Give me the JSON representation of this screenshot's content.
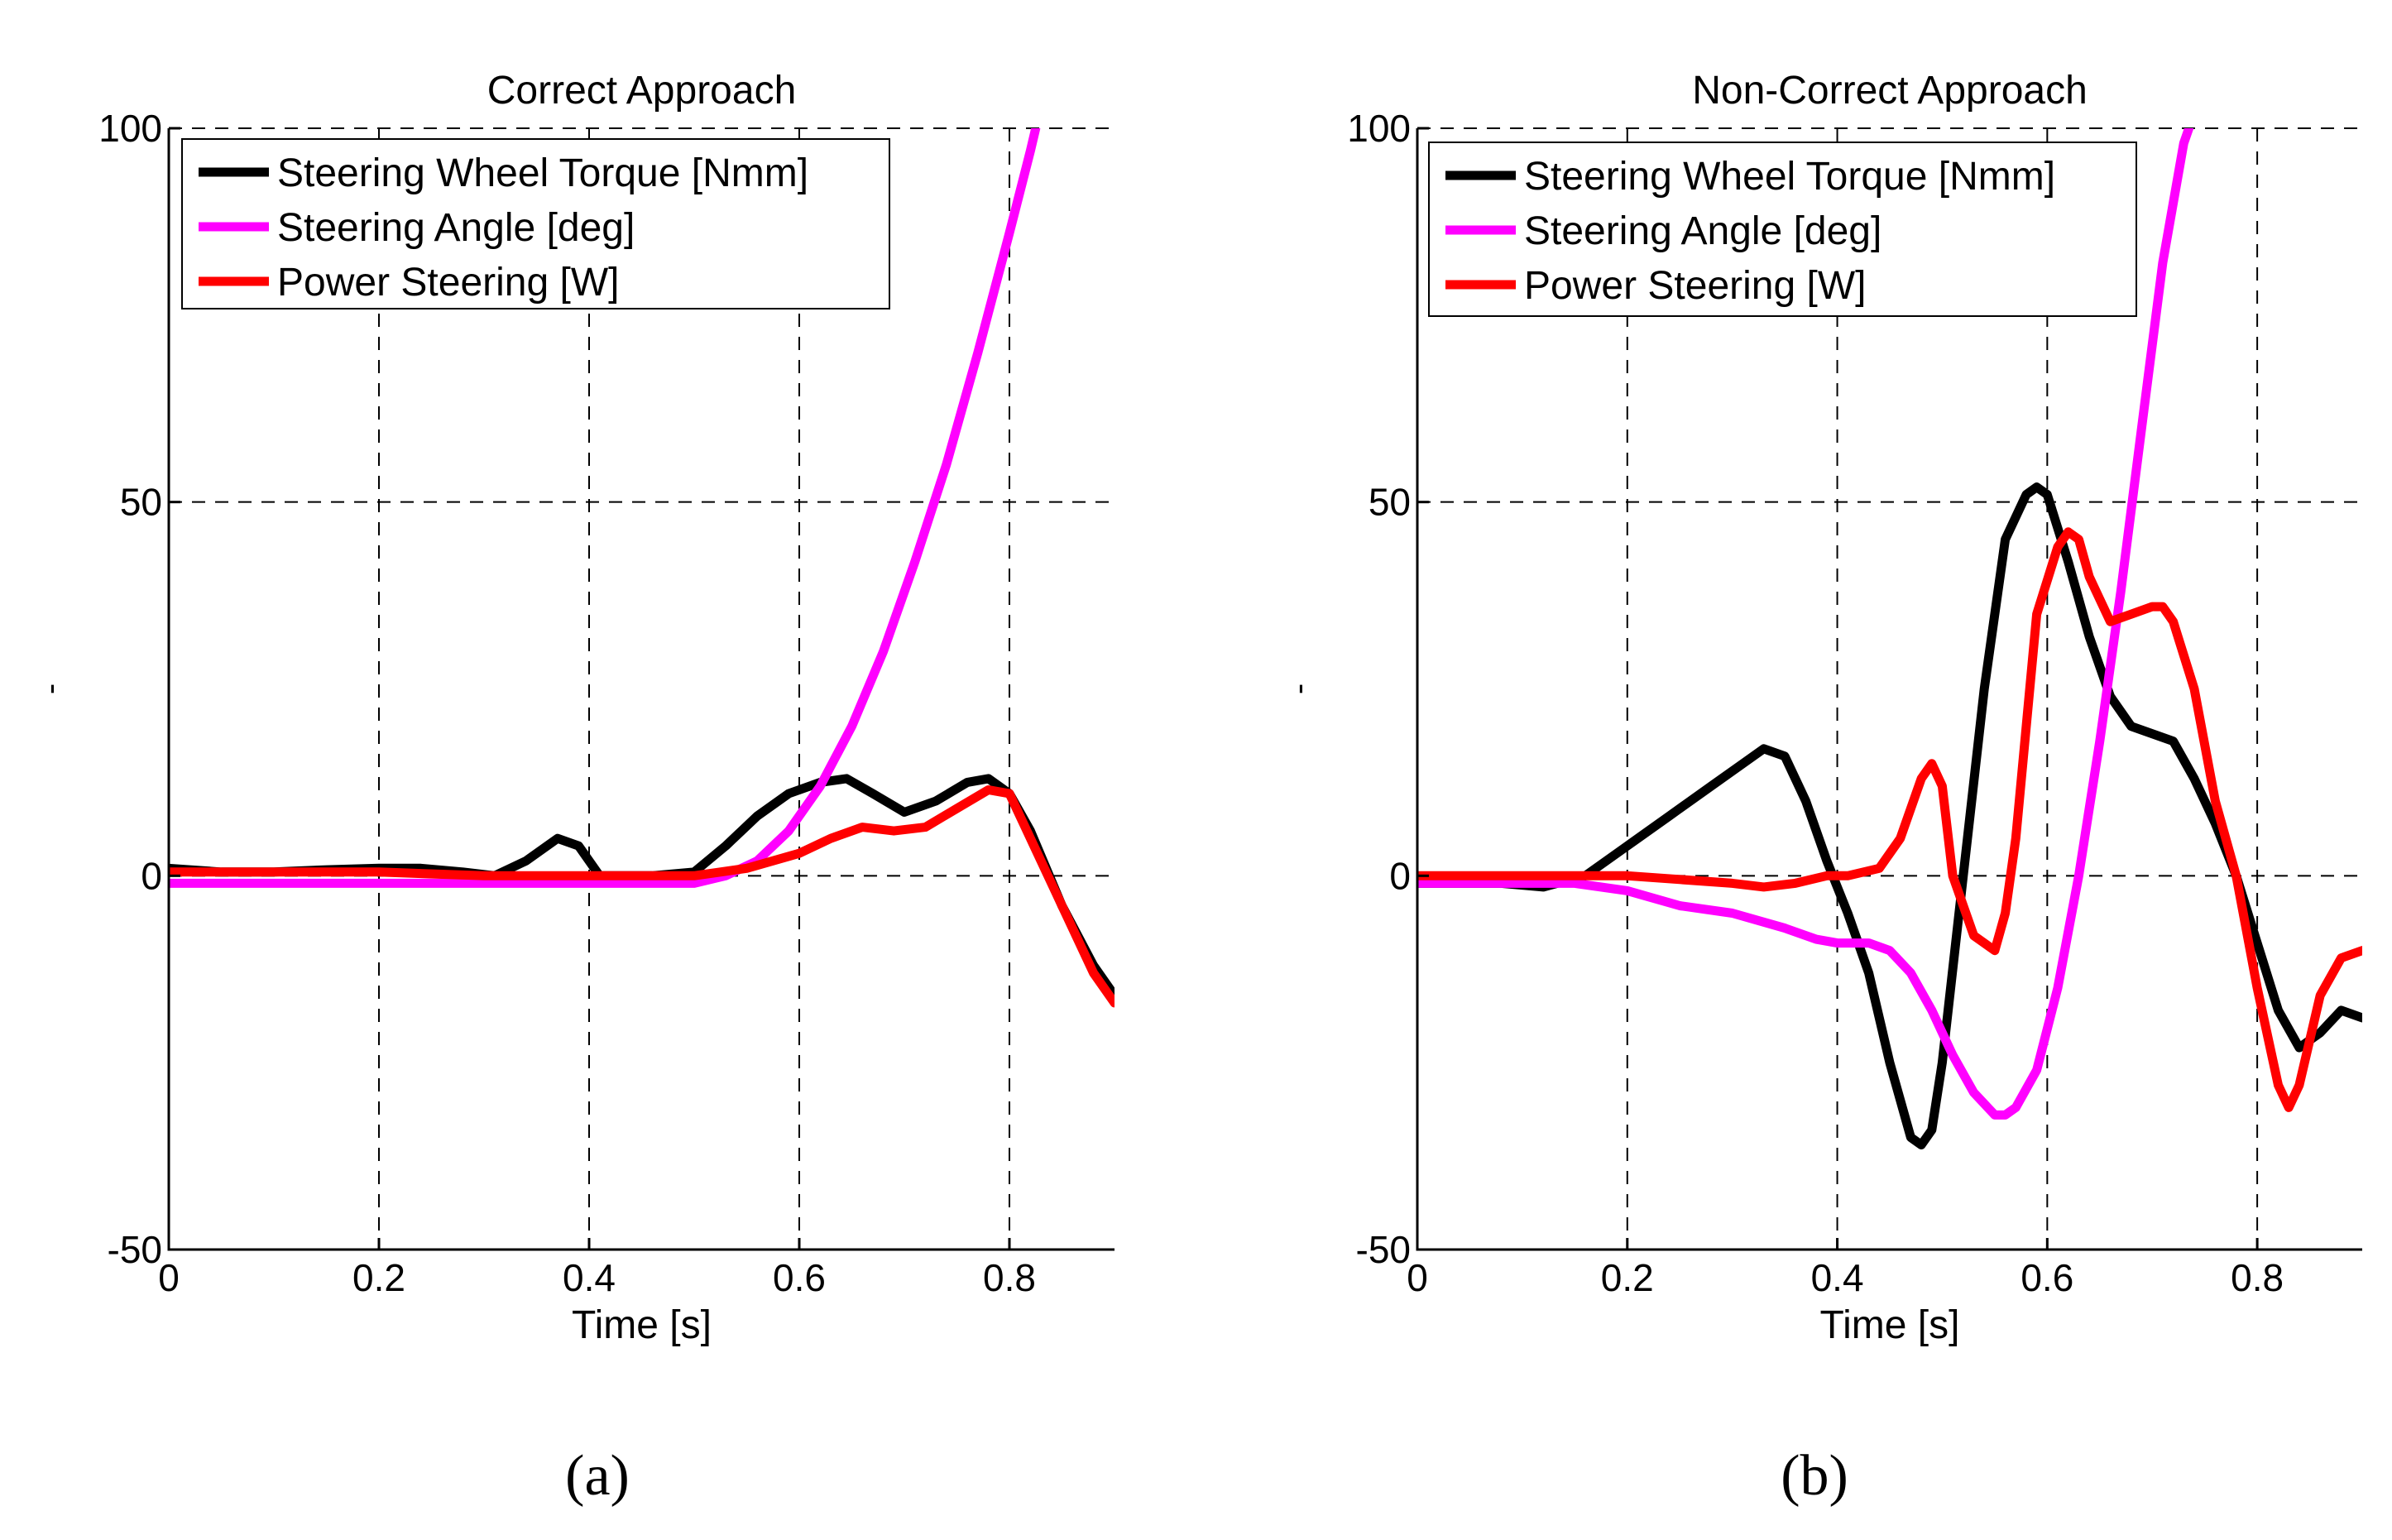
{
  "figure": {
    "captions": [
      "(a)",
      "(b)"
    ]
  },
  "colors": {
    "torque": "#000000",
    "angle": "#ff00ff",
    "power": "#ff0000",
    "grid": "#000000",
    "background": "#ffffff"
  },
  "chart_data": [
    {
      "type": "line",
      "title": "Correct Approach",
      "xlabel": "Time [s]",
      "ylabel": "-",
      "xlim": [
        0,
        0.9
      ],
      "ylim": [
        -50,
        100
      ],
      "xticks": [
        0,
        0.2,
        0.4,
        0.6,
        0.8
      ],
      "yticks": [
        -50,
        0,
        50,
        100
      ],
      "xtick_labels": [
        "0",
        "0.2",
        "0.4",
        "0.6",
        "0.8"
      ],
      "ytick_labels": [
        "-50",
        "0",
        "50",
        "100"
      ],
      "grid": true,
      "legend_position": "top-left",
      "series": [
        {
          "name": "Steering Wheel Torque [Nmm]",
          "color_key": "torque",
          "x": [
            0,
            0.05,
            0.1,
            0.15,
            0.2,
            0.24,
            0.28,
            0.31,
            0.34,
            0.37,
            0.39,
            0.41,
            0.43,
            0.46,
            0.5,
            0.53,
            0.56,
            0.59,
            0.62,
            0.645,
            0.67,
            0.7,
            0.73,
            0.76,
            0.78,
            0.8,
            0.82,
            0.85,
            0.88,
            0.9
          ],
          "y": [
            1,
            0.5,
            0.5,
            0.8,
            1,
            1,
            0.5,
            0,
            2,
            5,
            4,
            0,
            0,
            0,
            0.5,
            4,
            8,
            11,
            12.5,
            13,
            11,
            8.5,
            10,
            12.5,
            13,
            11,
            6,
            -4,
            -12,
            -16
          ]
        },
        {
          "name": "Steering Angle [deg]",
          "color_key": "angle",
          "x": [
            0,
            0.1,
            0.2,
            0.3,
            0.4,
            0.45,
            0.5,
            0.53,
            0.56,
            0.59,
            0.62,
            0.65,
            0.68,
            0.71,
            0.74,
            0.77,
            0.8,
            0.82,
            0.825
          ],
          "y": [
            -1,
            -1,
            -1,
            -1,
            -1,
            -1,
            -1,
            0,
            2,
            6,
            12,
            20,
            30,
            42,
            55,
            70,
            86,
            97,
            100
          ]
        },
        {
          "name": "Power Steering [W]",
          "color_key": "power",
          "x": [
            0,
            0.1,
            0.2,
            0.3,
            0.4,
            0.5,
            0.55,
            0.6,
            0.63,
            0.66,
            0.69,
            0.72,
            0.75,
            0.78,
            0.8,
            0.82,
            0.85,
            0.88,
            0.9
          ],
          "y": [
            0.5,
            0.5,
            0.5,
            0,
            0,
            0,
            1,
            3,
            5,
            6.5,
            6,
            6.5,
            9,
            11.5,
            11,
            5,
            -4,
            -13,
            -17
          ]
        }
      ]
    },
    {
      "type": "line",
      "title": "Non-Correct Approach",
      "xlabel": "Time [s]",
      "ylabel": "-",
      "xlim": [
        0,
        0.9
      ],
      "ylim": [
        -50,
        100
      ],
      "xticks": [
        0,
        0.2,
        0.4,
        0.6,
        0.8
      ],
      "yticks": [
        -50,
        0,
        50,
        100
      ],
      "xtick_labels": [
        "0",
        "0.2",
        "0.4",
        "0.6",
        "0.8"
      ],
      "ytick_labels": [
        "-50",
        "0",
        "50",
        "100"
      ],
      "grid": true,
      "legend_position": "top-left",
      "series": [
        {
          "name": "Steering Wheel Torque [Nmm]",
          "color_key": "torque",
          "x": [
            0,
            0.08,
            0.12,
            0.16,
            0.2,
            0.24,
            0.28,
            0.31,
            0.33,
            0.35,
            0.37,
            0.39,
            0.41,
            0.43,
            0.45,
            0.47,
            0.48,
            0.49,
            0.5,
            0.52,
            0.54,
            0.56,
            0.58,
            0.59,
            0.6,
            0.62,
            0.64,
            0.66,
            0.68,
            0.7,
            0.72,
            0.74,
            0.76,
            0.78,
            0.8,
            0.82,
            0.84,
            0.86,
            0.88,
            0.9
          ],
          "y": [
            -1,
            -1,
            -1.5,
            0,
            4,
            8,
            12,
            15,
            17,
            16,
            10,
            2,
            -5,
            -13,
            -25,
            -35,
            -36,
            -34,
            -25,
            0,
            25,
            45,
            51,
            52,
            51,
            42,
            32,
            24,
            20,
            19,
            18,
            13,
            7,
            0,
            -9,
            -18,
            -23,
            -21,
            -18,
            -19
          ]
        },
        {
          "name": "Steering Angle [deg]",
          "color_key": "angle",
          "x": [
            0,
            0.1,
            0.15,
            0.2,
            0.25,
            0.3,
            0.35,
            0.38,
            0.4,
            0.43,
            0.45,
            0.47,
            0.49,
            0.51,
            0.53,
            0.55,
            0.56,
            0.57,
            0.59,
            0.61,
            0.63,
            0.65,
            0.67,
            0.69,
            0.71,
            0.73,
            0.735
          ],
          "y": [
            -1,
            -1,
            -1,
            -2,
            -4,
            -5,
            -7,
            -8.5,
            -9,
            -9,
            -10,
            -13,
            -18,
            -24,
            -29,
            -32,
            -32,
            -31,
            -26,
            -15,
            0,
            18,
            38,
            60,
            82,
            98,
            100
          ]
        },
        {
          "name": "Power Steering [W]",
          "color_key": "power",
          "x": [
            0,
            0.1,
            0.2,
            0.25,
            0.3,
            0.33,
            0.36,
            0.39,
            0.41,
            0.44,
            0.46,
            0.48,
            0.49,
            0.5,
            0.51,
            0.53,
            0.55,
            0.56,
            0.57,
            0.59,
            0.61,
            0.62,
            0.63,
            0.64,
            0.66,
            0.68,
            0.7,
            0.71,
            0.72,
            0.74,
            0.76,
            0.78,
            0.8,
            0.82,
            0.83,
            0.84,
            0.86,
            0.88,
            0.9
          ],
          "y": [
            0,
            0,
            0,
            -0.5,
            -1,
            -1.5,
            -1,
            0,
            0,
            1,
            5,
            13,
            15,
            12,
            0,
            -8,
            -10,
            -5,
            5,
            35,
            44,
            46,
            45,
            40,
            34,
            35,
            36,
            36,
            34,
            25,
            10,
            0,
            -15,
            -28,
            -31,
            -28,
            -16,
            -11,
            -10
          ]
        }
      ]
    }
  ]
}
